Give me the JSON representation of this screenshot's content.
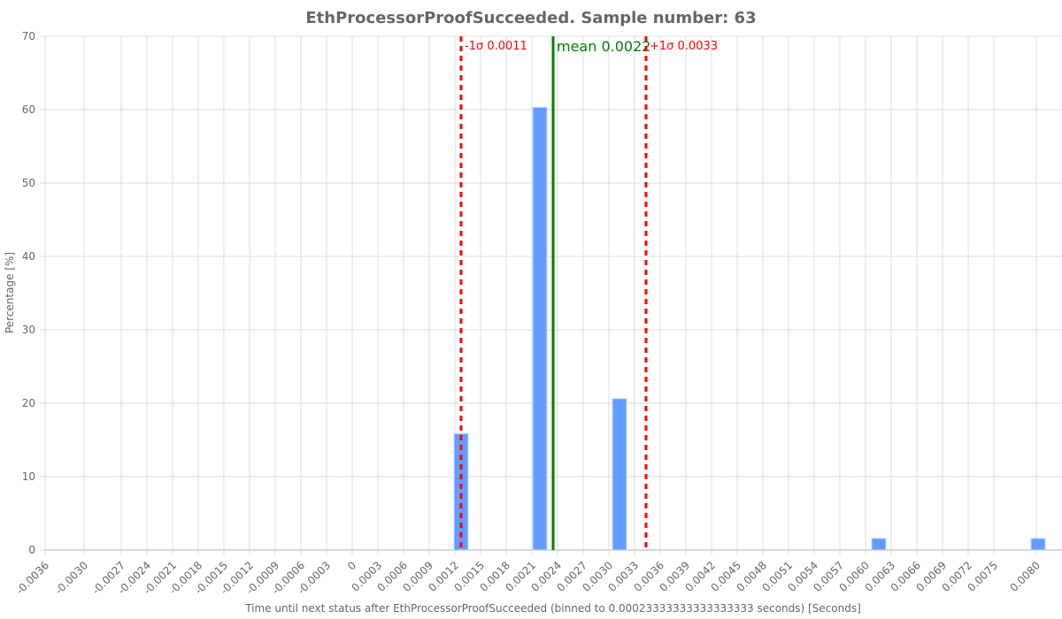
{
  "chart_data": {
    "type": "bar",
    "title": "EthProcessorProofSucceeded. Sample number: 63",
    "xlabel": "Time until next status after EthProcessorProofSucceeded (binned to 0.00023333333333333333 seconds) [Seconds]",
    "ylabel": "Percentage [%]",
    "ylim": [
      0,
      70
    ],
    "yticks": [
      0,
      10,
      20,
      30,
      40,
      50,
      60,
      70
    ],
    "xticks": [
      "-0.0036",
      "-0.0030",
      "-0.0027",
      "-0.0024",
      "-0.0021",
      "-0.0018",
      "-0.0015",
      "-0.0012",
      "-0.0009",
      "-0.0006",
      "-0.0003",
      "0",
      "0.0003",
      "0.0006",
      "0.0009",
      "0.0012",
      "0.0015",
      "0.0018",
      "0.0021",
      "0.0024",
      "0.0027",
      "0.0030",
      "0.0033",
      "0.0036",
      "0.0039",
      "0.0042",
      "0.0045",
      "0.0048",
      "0.0051",
      "0.0054",
      "0.0057",
      "0.0060",
      "0.0063",
      "0.0066",
      "0.0069",
      "0.0072",
      "0.0075",
      "0.0080"
    ],
    "grid": true,
    "categories": [
      "0.0012",
      "0.0021",
      "0.0030",
      "0.0060",
      "0.0080"
    ],
    "values": [
      15.87,
      60.32,
      20.63,
      1.59,
      1.59
    ],
    "bar_color": "#639cff",
    "annotations": [
      {
        "label": "-1σ 0.0011",
        "value": 0.0011,
        "style": "dashed",
        "color": "#ff0000"
      },
      {
        "label": "mean 0.0022",
        "value": 0.0022,
        "style": "solid",
        "color": "#008000"
      },
      {
        "label": "+1σ 0.0033",
        "value": 0.0033,
        "style": "dashed",
        "color": "#ff0000"
      }
    ]
  }
}
